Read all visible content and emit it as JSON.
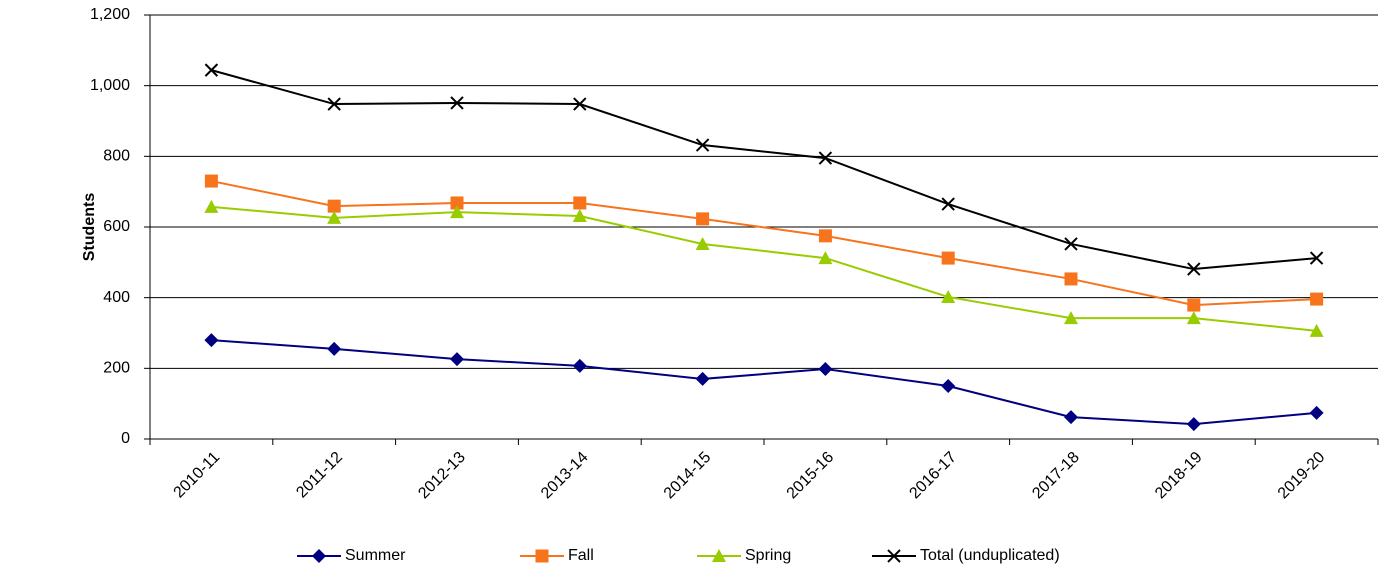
{
  "chart_data": {
    "type": "line",
    "y_label": "Students",
    "categories": [
      "2010-11",
      "2011-12",
      "2012-13",
      "2013-14",
      "2014-15",
      "2015-16",
      "2016-17",
      "2017-18",
      "2018-19",
      "2019-20"
    ],
    "series": [
      {
        "name": "Summer",
        "color": "#000080",
        "marker": "diamond",
        "values": [
          280,
          255,
          226,
          207,
          170,
          198,
          150,
          62,
          42,
          74
        ]
      },
      {
        "name": "Fall",
        "color": "#f7731c",
        "marker": "square",
        "values": [
          730,
          659,
          668,
          668,
          623,
          575,
          512,
          453,
          379,
          396
        ]
      },
      {
        "name": "Spring",
        "color": "#99cc00",
        "marker": "triangle",
        "values": [
          657,
          626,
          642,
          631,
          552,
          512,
          402,
          342,
          342,
          306
        ]
      },
      {
        "name": "Total (unduplicated)",
        "color": "#000000",
        "marker": "x",
        "values": [
          1044,
          948,
          951,
          948,
          832,
          795,
          665,
          552,
          481,
          512
        ]
      }
    ],
    "ylim": [
      0,
      1200
    ],
    "yticks": [
      0,
      200,
      400,
      600,
      800,
      {
        "value": 1000,
        "label": "1,000"
      },
      {
        "value": 1200,
        "label": "1,200"
      }
    ],
    "grid": true,
    "legend": "bottom"
  }
}
